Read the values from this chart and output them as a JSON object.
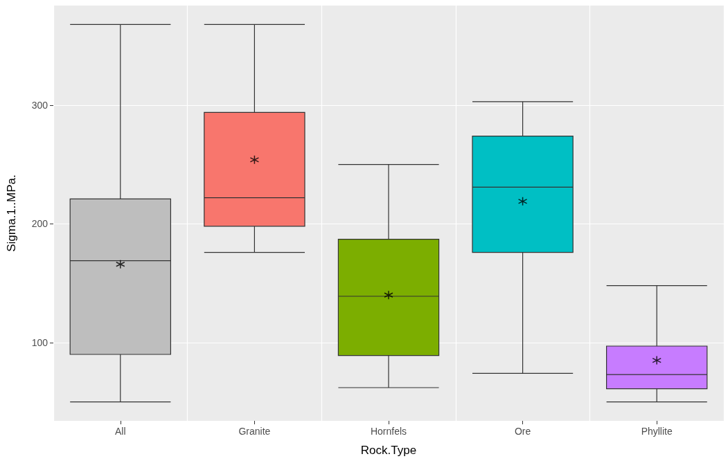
{
  "chart_data": {
    "type": "box",
    "xlabel": "Rock.Type",
    "ylabel": "Sigma.1..MPa.",
    "categories": [
      "All",
      "Granite",
      "Hornfels",
      "Ore",
      "Phyllite"
    ],
    "colors": [
      "#bebebe",
      "#f8766d",
      "#7cae00",
      "#00bfc4",
      "#c77cff"
    ],
    "boxes": [
      {
        "low": 50,
        "q1": 90,
        "median": 169,
        "q3": 221,
        "high": 368,
        "mean": 166
      },
      {
        "low": 176,
        "q1": 198,
        "median": 222,
        "q3": 294,
        "high": 368,
        "mean": 254
      },
      {
        "low": 62,
        "q1": 89,
        "median": 139,
        "q3": 187,
        "high": 250,
        "mean": 140
      },
      {
        "low": 74,
        "q1": 176,
        "median": 231,
        "q3": 274,
        "high": 303,
        "mean": 219
      },
      {
        "low": 50,
        "q1": 61,
        "median": 73,
        "q3": 97,
        "high": 148,
        "mean": 85
      }
    ],
    "ylim": [
      34,
      384
    ],
    "yticks": [
      100,
      200,
      300
    ],
    "grid": true
  }
}
